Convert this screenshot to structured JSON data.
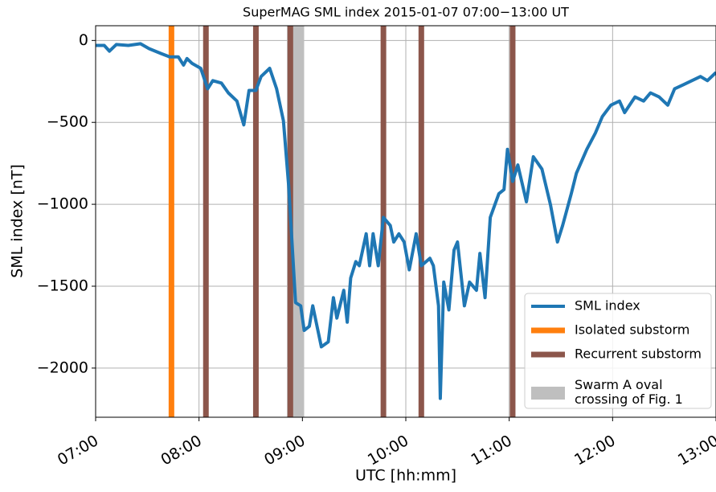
{
  "chart_data": {
    "type": "line",
    "title": "SuperMAG SML index 2015-01-07 07:00−13:00 UT",
    "xlabel": "UTC [hh:mm]",
    "ylabel": "SML index [nT]",
    "xlim": [
      "07:00",
      "13:00"
    ],
    "ylim": [
      -2300,
      90
    ],
    "xticks": [
      "07:00",
      "08:00",
      "09:00",
      "10:00",
      "11:00",
      "12:00",
      "13:00"
    ],
    "yticks": [
      0,
      {
        "value": -500,
        "label": "−500"
      },
      {
        "value": -1000,
        "label": "−1000"
      },
      {
        "value": -1500,
        "label": "−1500"
      },
      {
        "value": -2000,
        "label": "−2000"
      }
    ],
    "grid": true,
    "series": [
      {
        "name": "SML index",
        "color": "#1f77b4",
        "x": [
          "07:00",
          "07:05",
          "07:08",
          "07:12",
          "07:19",
          "07:26",
          "07:31",
          "07:38",
          "07:43",
          "07:48",
          "07:51",
          "07:53",
          "07:56",
          "08:01",
          "08:05",
          "08:08",
          "08:13",
          "08:17",
          "08:22",
          "08:26",
          "08:29",
          "08:33",
          "08:36",
          "08:41",
          "08:45",
          "08:49",
          "08:52",
          "08:56",
          "08:59",
          "09:01",
          "09:04",
          "09:06",
          "09:09",
          "09:11",
          "09:15",
          "09:18",
          "09:20",
          "09:24",
          "09:26",
          "09:28",
          "09:31",
          "09:33",
          "09:37",
          "09:39",
          "09:41",
          "09:44",
          "09:47",
          "09:51",
          "09:53",
          "09:56",
          "09:59",
          "10:02",
          "10:06",
          "10:09",
          "10:14",
          "10:16",
          "10:19",
          "10:20",
          "10:22",
          "10:25",
          "10:28",
          "10:30",
          "10:34",
          "10:37",
          "10:41",
          "10:43",
          "10:46",
          "10:49",
          "10:54",
          "10:57",
          "10:59",
          "11:02",
          "11:05",
          "11:10",
          "11:14",
          "11:19",
          "11:24",
          "11:28",
          "11:31",
          "11:36",
          "11:39",
          "11:45",
          "11:50",
          "11:54",
          "11:59",
          "12:04",
          "12:07",
          "12:13",
          "12:18",
          "12:22",
          "12:27",
          "12:32",
          "12:36",
          "12:41",
          "12:46",
          "12:51",
          "12:55",
          "13:00"
        ],
        "values": [
          -30,
          -30,
          -65,
          -25,
          -30,
          -20,
          -50,
          -80,
          -100,
          -100,
          -150,
          -110,
          -140,
          -170,
          -295,
          -245,
          -260,
          -320,
          -370,
          -515,
          -305,
          -305,
          -220,
          -170,
          -295,
          -490,
          -885,
          -1600,
          -1620,
          -1770,
          -1745,
          -1620,
          -1770,
          -1870,
          -1840,
          -1570,
          -1695,
          -1525,
          -1720,
          -1450,
          -1350,
          -1375,
          -1180,
          -1375,
          -1180,
          -1375,
          -1080,
          -1130,
          -1230,
          -1180,
          -1230,
          -1400,
          -1180,
          -1375,
          -1330,
          -1375,
          -1620,
          -2185,
          -1475,
          -1645,
          -1280,
          -1230,
          -1620,
          -1475,
          -1525,
          -1300,
          -1570,
          -1080,
          -935,
          -910,
          -665,
          -860,
          -760,
          -985,
          -710,
          -785,
          -1005,
          -1230,
          -1130,
          -935,
          -810,
          -665,
          -565,
          -465,
          -395,
          -370,
          -440,
          -345,
          -370,
          -320,
          -345,
          -395,
          -295,
          -270,
          -245,
          -220,
          -245,
          -195
        ]
      },
      {
        "name": "Isolated substorm",
        "color": "#ff7f0e",
        "x": [
          "07:44"
        ]
      },
      {
        "name": "Recurrent substorm",
        "color": "#8c564b",
        "x": [
          "08:04",
          "08:33",
          "08:53",
          "09:47",
          "10:09",
          "11:02"
        ]
      },
      {
        "name": "Swarm A oval crossing of Fig. 1",
        "color": "#bfbfbf",
        "spans": [
          [
            "08:51",
            "09:01"
          ]
        ]
      }
    ]
  }
}
